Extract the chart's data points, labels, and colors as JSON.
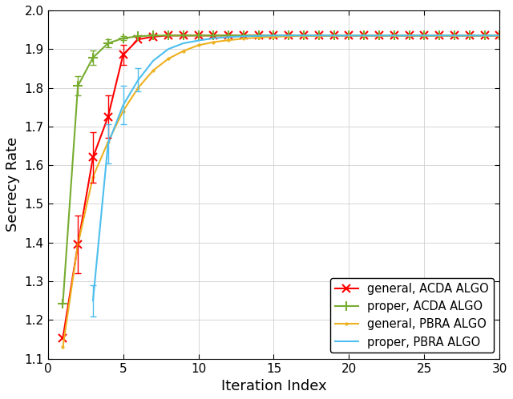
{
  "title": "",
  "xlabel": "Iteration Index",
  "ylabel": "Secrecy Rate",
  "xlim": [
    0,
    30
  ],
  "ylim": [
    1.1,
    2.0
  ],
  "xticks": [
    0,
    5,
    10,
    15,
    20,
    25,
    30
  ],
  "yticks": [
    1.1,
    1.2,
    1.3,
    1.4,
    1.5,
    1.6,
    1.7,
    1.8,
    1.9,
    2.0
  ],
  "converge_val": 1.935,
  "series": [
    {
      "label": "general, ACDA ALGO",
      "color": "#FF0000",
      "marker": "x",
      "markersize": 7,
      "markeredgewidth": 1.5,
      "linewidth": 1.5,
      "x": [
        1,
        2,
        3,
        4,
        5,
        6,
        7,
        8,
        9,
        10,
        11,
        12,
        13,
        14,
        15,
        16,
        17,
        18,
        19,
        20,
        21,
        22,
        23,
        24,
        25,
        26,
        27,
        28,
        29,
        30
      ],
      "y": [
        1.153,
        1.395,
        1.62,
        1.725,
        1.885,
        1.925,
        1.932,
        1.935,
        1.935,
        1.935,
        1.935,
        1.935,
        1.935,
        1.935,
        1.935,
        1.935,
        1.935,
        1.935,
        1.935,
        1.935,
        1.935,
        1.935,
        1.935,
        1.935,
        1.935,
        1.935,
        1.935,
        1.935,
        1.935,
        1.935
      ]
    },
    {
      "label": "proper, ACDA ALGO",
      "color": "#77AC30",
      "marker": "+",
      "markersize": 8,
      "markeredgewidth": 1.5,
      "linewidth": 1.5,
      "x": [
        1,
        2,
        3,
        4,
        5,
        6,
        7,
        8,
        9,
        10,
        11,
        12,
        13,
        14,
        15,
        16,
        17,
        18,
        19,
        20,
        21,
        22,
        23,
        24,
        25,
        26,
        27,
        28,
        29,
        30
      ],
      "y": [
        1.243,
        1.805,
        1.878,
        1.915,
        1.928,
        1.933,
        1.935,
        1.935,
        1.935,
        1.935,
        1.935,
        1.935,
        1.935,
        1.935,
        1.935,
        1.935,
        1.935,
        1.935,
        1.935,
        1.935,
        1.935,
        1.935,
        1.935,
        1.935,
        1.935,
        1.935,
        1.935,
        1.935,
        1.935,
        1.935
      ]
    },
    {
      "label": "general, PBRA ALGO",
      "color": "#EDB120",
      "marker": ".",
      "markersize": 4,
      "markeredgewidth": 1.0,
      "linewidth": 1.5,
      "x": [
        1,
        2,
        3,
        4,
        5,
        6,
        7,
        8,
        9,
        10,
        11,
        12,
        13,
        14,
        15,
        16,
        17,
        18,
        19,
        20,
        21,
        22,
        23,
        24,
        25,
        26,
        27,
        28,
        29,
        30
      ],
      "y": [
        1.13,
        1.395,
        1.57,
        1.66,
        1.74,
        1.8,
        1.845,
        1.875,
        1.895,
        1.91,
        1.918,
        1.923,
        1.927,
        1.93,
        1.932,
        1.933,
        1.934,
        1.934,
        1.935,
        1.935,
        1.935,
        1.935,
        1.935,
        1.935,
        1.935,
        1.935,
        1.935,
        1.935,
        1.935,
        1.935
      ]
    },
    {
      "label": "proper, PBRA ALGO",
      "color": "#4DBEEE",
      "marker": "None",
      "markersize": 0,
      "markeredgewidth": 0,
      "linewidth": 1.5,
      "x": [
        3,
        4,
        5,
        6,
        7,
        8,
        9,
        10,
        11,
        12,
        13,
        14,
        15,
        16,
        17,
        18,
        19,
        20,
        21,
        22,
        23,
        24,
        25,
        26,
        27,
        28,
        29,
        30
      ],
      "y": [
        1.25,
        1.655,
        1.755,
        1.82,
        1.87,
        1.9,
        1.915,
        1.922,
        1.928,
        1.931,
        1.933,
        1.934,
        1.935,
        1.935,
        1.935,
        1.935,
        1.935,
        1.935,
        1.935,
        1.935,
        1.935,
        1.935,
        1.935,
        1.935,
        1.935,
        1.935,
        1.935,
        1.935
      ]
    }
  ],
  "error_bars": {
    "red_x": [
      2,
      3,
      4,
      5
    ],
    "red_y": [
      1.395,
      1.62,
      1.725,
      1.885
    ],
    "red_yerr": [
      0.075,
      0.065,
      0.055,
      0.025
    ],
    "green_x": [
      2,
      3,
      4,
      5
    ],
    "green_y": [
      1.805,
      1.878,
      1.915,
      1.928
    ],
    "green_yerr": [
      0.025,
      0.018,
      0.01,
      0.005
    ],
    "blue_x": [
      3,
      4,
      5,
      6
    ],
    "blue_y": [
      1.25,
      1.655,
      1.755,
      1.82
    ],
    "blue_yerr": [
      0.04,
      0.05,
      0.05,
      0.03
    ]
  },
  "background_color": "#FFFFFF",
  "grid_color": "#D0D0D0",
  "legend_loc": "lower right",
  "figsize": [
    6.4,
    4.98
  ],
  "dpi": 100
}
